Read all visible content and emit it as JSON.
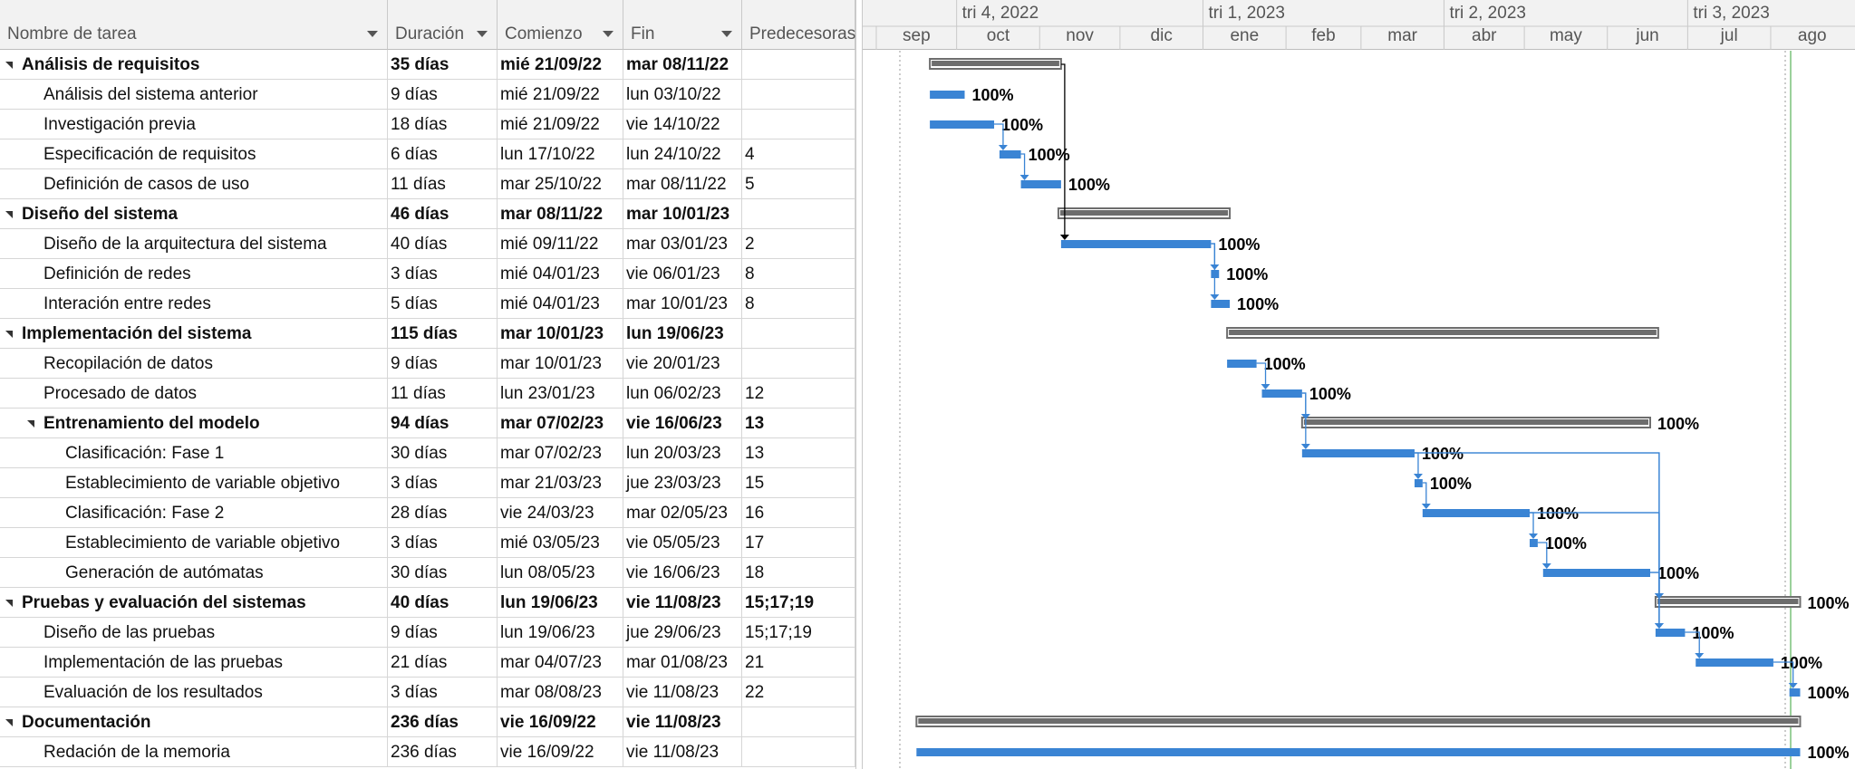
{
  "columns": {
    "name": "Nombre de tarea",
    "duration": "Duración",
    "start": "Comienzo",
    "end": "Fin",
    "predecessors": "Predecesoras"
  },
  "timescale": {
    "quarters": [
      "tri 4, 2022",
      "tri 1, 2023",
      "tri 2, 2023",
      "tri 3, 2023"
    ],
    "months": [
      "sep",
      "oct",
      "nov",
      "dic",
      "ene",
      "feb",
      "mar",
      "abr",
      "may",
      "jun",
      "jul",
      "ago"
    ]
  },
  "colors": {
    "task_bar": "#3a84d4",
    "summary_bar": "#6d6d6d",
    "link_line": "#3a84d4",
    "link_line_summary": "#000000",
    "grid_line": "#d6d6d6",
    "header_bg": "#f2f2f2"
  },
  "tasks": [
    {
      "name": "Análisis de requisitos",
      "duration": "35 días",
      "start": "mié 21/09/22",
      "end": "mar 08/11/22",
      "pred": "",
      "summary": true,
      "level": 1,
      "progress": ""
    },
    {
      "name": "Análisis del sistema anterior",
      "duration": "9 días",
      "start": "mié 21/09/22",
      "end": "lun 03/10/22",
      "pred": "",
      "summary": false,
      "level": 2,
      "progress": "100%"
    },
    {
      "name": "Investigación previa",
      "duration": "18 días",
      "start": "mié 21/09/22",
      "end": "vie 14/10/22",
      "pred": "",
      "summary": false,
      "level": 2,
      "progress": "100%"
    },
    {
      "name": "Especificación de requisitos",
      "duration": "6 días",
      "start": "lun 17/10/22",
      "end": "lun 24/10/22",
      "pred": "4",
      "summary": false,
      "level": 2,
      "progress": "100%"
    },
    {
      "name": "Definición de casos de uso",
      "duration": "11 días",
      "start": "mar 25/10/22",
      "end": "mar 08/11/22",
      "pred": "5",
      "summary": false,
      "level": 2,
      "progress": "100%"
    },
    {
      "name": "Diseño del sistema",
      "duration": "46 días",
      "start": "mar 08/11/22",
      "end": "mar 10/01/23",
      "pred": "",
      "summary": true,
      "level": 1,
      "progress": ""
    },
    {
      "name": "Diseño de la arquitectura del sistema",
      "duration": "40 días",
      "start": "mié 09/11/22",
      "end": "mar 03/01/23",
      "pred": "2",
      "summary": false,
      "level": 2,
      "progress": "100%"
    },
    {
      "name": "Definición de redes",
      "duration": "3 días",
      "start": "mié 04/01/23",
      "end": "vie 06/01/23",
      "pred": "8",
      "summary": false,
      "level": 2,
      "progress": "100%"
    },
    {
      "name": "Interación entre redes",
      "duration": "5 días",
      "start": "mié 04/01/23",
      "end": "mar 10/01/23",
      "pred": "8",
      "summary": false,
      "level": 2,
      "progress": "100%"
    },
    {
      "name": "Implementación del sistema",
      "duration": "115 días",
      "start": "mar 10/01/23",
      "end": "lun 19/06/23",
      "pred": "",
      "summary": true,
      "level": 1,
      "progress": ""
    },
    {
      "name": "Recopilación de datos",
      "duration": "9 días",
      "start": "mar 10/01/23",
      "end": "vie 20/01/23",
      "pred": "",
      "summary": false,
      "level": 2,
      "progress": "100%"
    },
    {
      "name": "Procesado de datos",
      "duration": "11 días",
      "start": "lun 23/01/23",
      "end": "lun 06/02/23",
      "pred": "12",
      "summary": false,
      "level": 2,
      "progress": "100%"
    },
    {
      "name": "Entrenamiento del modelo",
      "duration": "94 días",
      "start": "mar 07/02/23",
      "end": "vie 16/06/23",
      "pred": "13",
      "summary": true,
      "level": 2,
      "progress": "100%"
    },
    {
      "name": "Clasificación: Fase 1",
      "duration": "30 días",
      "start": "mar 07/02/23",
      "end": "lun 20/03/23",
      "pred": "13",
      "summary": false,
      "level": 3,
      "progress": "100%"
    },
    {
      "name": "Establecimiento de variable objetivo",
      "duration": "3 días",
      "start": "mar 21/03/23",
      "end": "jue 23/03/23",
      "pred": "15",
      "summary": false,
      "level": 3,
      "progress": "100%"
    },
    {
      "name": "Clasificación: Fase 2",
      "duration": "28 días",
      "start": "vie 24/03/23",
      "end": "mar 02/05/23",
      "pred": "16",
      "summary": false,
      "level": 3,
      "progress": "100%"
    },
    {
      "name": "Establecimiento de variable objetivo",
      "duration": "3 días",
      "start": "mié 03/05/23",
      "end": "vie 05/05/23",
      "pred": "17",
      "summary": false,
      "level": 3,
      "progress": "100%"
    },
    {
      "name": "Generación de autómatas",
      "duration": "30 días",
      "start": "lun 08/05/23",
      "end": "vie 16/06/23",
      "pred": "18",
      "summary": false,
      "level": 3,
      "progress": "100%"
    },
    {
      "name": "Pruebas y evaluación del sistemas",
      "duration": "40 días",
      "start": "lun 19/06/23",
      "end": "vie 11/08/23",
      "pred": "15;17;19",
      "summary": true,
      "level": 1,
      "progress": "100%"
    },
    {
      "name": "Diseño de las pruebas",
      "duration": "9 días",
      "start": "lun 19/06/23",
      "end": "jue 29/06/23",
      "pred": "15;17;19",
      "summary": false,
      "level": 2,
      "progress": "100%"
    },
    {
      "name": "Implementación de las pruebas",
      "duration": "21 días",
      "start": "mar 04/07/23",
      "end": "mar 01/08/23",
      "pred": "21",
      "summary": false,
      "level": 2,
      "progress": "100%"
    },
    {
      "name": "Evaluación de los resultados",
      "duration": "3 días",
      "start": "mar 08/08/23",
      "end": "vie 11/08/23",
      "pred": "22",
      "summary": false,
      "level": 2,
      "progress": "100%"
    },
    {
      "name": "Documentación",
      "duration": "236 días",
      "start": "vie 16/09/22",
      "end": "vie 11/08/23",
      "pred": "",
      "summary": true,
      "level": 1,
      "progress": ""
    },
    {
      "name": "Redación de la memoria",
      "duration": "236 días",
      "start": "vie 16/09/22",
      "end": "vie 11/08/23",
      "pred": "",
      "summary": false,
      "level": 2,
      "progress": "100%"
    }
  ]
}
